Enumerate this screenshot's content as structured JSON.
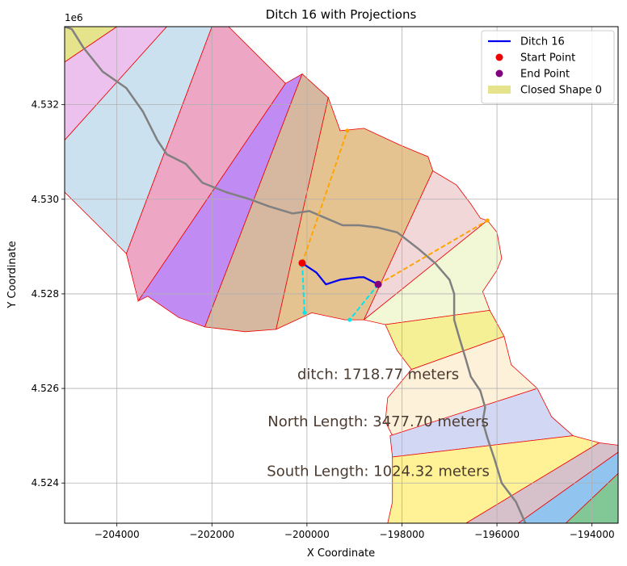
{
  "chart_data": {
    "type": "line",
    "title": "Ditch 16 with Projections",
    "xlabel": "X Coordinate",
    "ylabel": "Y Coordinate",
    "y_offset_label": "1e6",
    "xlim": [
      -205100,
      -193450
    ],
    "ylim": [
      4523150,
      4533650
    ],
    "x_ticks": [
      {
        "value": -204000,
        "label": "−204000"
      },
      {
        "value": -202000,
        "label": "−202000"
      },
      {
        "value": -200000,
        "label": "−200000"
      },
      {
        "value": -198000,
        "label": "−198000"
      },
      {
        "value": -196000,
        "label": "−196000"
      },
      {
        "value": -194000,
        "label": "−194000"
      }
    ],
    "y_ticks": [
      {
        "value": 4524000,
        "label": "4.524"
      },
      {
        "value": 4526000,
        "label": "4.526"
      },
      {
        "value": 4528000,
        "label": "4.528"
      },
      {
        "value": 4530000,
        "label": "4.530"
      },
      {
        "value": 4532000,
        "label": "4.532"
      }
    ],
    "grid": true,
    "legend_position": "top-right",
    "legend": [
      {
        "label": "Ditch 16",
        "kind": "line",
        "color": "#0000ee"
      },
      {
        "label": "Start Point",
        "kind": "dot",
        "color": "#ee0000"
      },
      {
        "label": "End Point",
        "kind": "dot",
        "color": "#800080"
      },
      {
        "label": "Closed Shape 0",
        "kind": "patch",
        "color": "#e5e38c"
      }
    ],
    "annotations": [
      {
        "text": "ditch: 1718.77 meters",
        "x": -198500,
        "y": 4526200
      },
      {
        "text": "North Length: 3477.70 meters",
        "x": -198500,
        "y": 4525200
      },
      {
        "text": "South Length: 1024.32 meters",
        "x": -198500,
        "y": 4524150
      }
    ],
    "polygons": [
      {
        "color": "#e5e38c",
        "points": [
          [
            -205100,
            4533650
          ],
          [
            -204000,
            4533650
          ],
          [
            -205100,
            4532900
          ]
        ]
      },
      {
        "color": "#ecc1ed",
        "points": [
          [
            -205100,
            4532900
          ],
          [
            -204000,
            4533650
          ],
          [
            -202950,
            4533650
          ],
          [
            -205100,
            4531250
          ]
        ]
      },
      {
        "color": "#cce1f0",
        "points": [
          [
            -205100,
            4531250
          ],
          [
            -202950,
            4533650
          ],
          [
            -202000,
            4533650
          ],
          [
            -203800,
            4528850
          ],
          [
            -205100,
            4530150
          ]
        ]
      },
      {
        "color": "#eda6c3",
        "points": [
          [
            -202000,
            4533650
          ],
          [
            -201650,
            4533650
          ],
          [
            -200450,
            4532450
          ],
          [
            -203550,
            4527850
          ],
          [
            -203800,
            4528850
          ]
        ]
      },
      {
        "color": "#c18bf4",
        "points": [
          [
            -200450,
            4532450
          ],
          [
            -200100,
            4532650
          ],
          [
            -202150,
            4527300
          ],
          [
            -202700,
            4527500
          ],
          [
            -203350,
            4527950
          ],
          [
            -203550,
            4527850
          ]
        ]
      },
      {
        "color": "#d6b8a0",
        "points": [
          [
            -200100,
            4532650
          ],
          [
            -199550,
            4532150
          ],
          [
            -200650,
            4527250
          ],
          [
            -201300,
            4527200
          ],
          [
            -202150,
            4527300
          ]
        ]
      },
      {
        "color": "#e5c390",
        "points": [
          [
            -199550,
            4532150
          ],
          [
            -199300,
            4531450
          ],
          [
            -198800,
            4531500
          ],
          [
            -198050,
            4531150
          ],
          [
            -197450,
            4530900
          ],
          [
            -197350,
            4530600
          ],
          [
            -198800,
            4527450
          ],
          [
            -199200,
            4527450
          ],
          [
            -199900,
            4527600
          ],
          [
            -200650,
            4527250
          ]
        ]
      },
      {
        "color": "#f2d7d9",
        "points": [
          [
            -197350,
            4530600
          ],
          [
            -196850,
            4530300
          ],
          [
            -196550,
            4529900
          ],
          [
            -196350,
            4529600
          ],
          [
            -196200,
            4529550
          ],
          [
            -198800,
            4527450
          ],
          [
            -197350,
            4530600
          ]
        ]
      },
      {
        "color": "#f2f8d6",
        "points": [
          [
            -196200,
            4529550
          ],
          [
            -196000,
            4529300
          ],
          [
            -195900,
            4528750
          ],
          [
            -196000,
            4528500
          ],
          [
            -196300,
            4528050
          ],
          [
            -196150,
            4527650
          ],
          [
            -198350,
            4527350
          ],
          [
            -198800,
            4527450
          ]
        ]
      },
      {
        "color": "#f5f096",
        "points": [
          [
            -198350,
            4527350
          ],
          [
            -196150,
            4527650
          ],
          [
            -195850,
            4527100
          ],
          [
            -197800,
            4526400
          ],
          [
            -198100,
            4526800
          ]
        ]
      },
      {
        "color": "#fef1da",
        "points": [
          [
            -195850,
            4527100
          ],
          [
            -195700,
            4526500
          ],
          [
            -195150,
            4526000
          ],
          [
            -198200,
            4525000
          ],
          [
            -198350,
            4525300
          ],
          [
            -198300,
            4525800
          ],
          [
            -197800,
            4526400
          ]
        ]
      },
      {
        "color": "#d2d7f3",
        "points": [
          [
            -195150,
            4526000
          ],
          [
            -194850,
            4525400
          ],
          [
            -194400,
            4525000
          ],
          [
            -198200,
            4524550
          ],
          [
            -198250,
            4525000
          ]
        ]
      },
      {
        "color": "#fef196",
        "points": [
          [
            -198200,
            4524550
          ],
          [
            -194400,
            4525000
          ],
          [
            -193850,
            4524850
          ],
          [
            -196650,
            4523150
          ],
          [
            -198300,
            4523150
          ],
          [
            -198200,
            4523600
          ]
        ]
      },
      {
        "color": "#d6c1ca",
        "points": [
          [
            -193850,
            4524850
          ],
          [
            -193450,
            4524800
          ],
          [
            -193450,
            4524650
          ],
          [
            -195550,
            4523150
          ],
          [
            -196650,
            4523150
          ]
        ]
      },
      {
        "color": "#91c4ee",
        "points": [
          [
            -193450,
            4524650
          ],
          [
            -193450,
            4524200
          ],
          [
            -194550,
            4523150
          ],
          [
            -195550,
            4523150
          ]
        ]
      },
      {
        "color": "#82c897",
        "points": [
          [
            -193450,
            4524200
          ],
          [
            -193450,
            4523150
          ],
          [
            -194550,
            4523150
          ]
        ]
      }
    ],
    "river": [
      [
        -205100,
        4533650
      ],
      [
        -204950,
        4533600
      ],
      [
        -204700,
        4533200
      ],
      [
        -204300,
        4532700
      ],
      [
        -203800,
        4532350
      ],
      [
        -203450,
        4531850
      ],
      [
        -203150,
        4531250
      ],
      [
        -202950,
        4530950
      ],
      [
        -202550,
        4530750
      ],
      [
        -202200,
        4530350
      ],
      [
        -201700,
        4530150
      ],
      [
        -201200,
        4530000
      ],
      [
        -200800,
        4529850
      ],
      [
        -200300,
        4529700
      ],
      [
        -199950,
        4529750
      ],
      [
        -199600,
        4529600
      ],
      [
        -199250,
        4529450
      ],
      [
        -198900,
        4529450
      ],
      [
        -198500,
        4529400
      ],
      [
        -198100,
        4529300
      ],
      [
        -197650,
        4528950
      ],
      [
        -197300,
        4528650
      ],
      [
        -197000,
        4528300
      ],
      [
        -196900,
        4528000
      ],
      [
        -196900,
        4527450
      ],
      [
        -196800,
        4527100
      ],
      [
        -196650,
        4526600
      ],
      [
        -196550,
        4526250
      ],
      [
        -196350,
        4525950
      ],
      [
        -196250,
        4525600
      ],
      [
        -196300,
        4525300
      ],
      [
        -196200,
        4524950
      ],
      [
        -196050,
        4524500
      ],
      [
        -195900,
        4524000
      ],
      [
        -195600,
        4523600
      ],
      [
        -195400,
        4523150
      ]
    ],
    "series": [
      {
        "name": "Ditch 16",
        "color": "#0000ee",
        "points": [
          [
            -200100,
            4528650
          ],
          [
            -199800,
            4528450
          ],
          [
            -199600,
            4528200
          ],
          [
            -199300,
            4528300
          ],
          [
            -198900,
            4528350
          ],
          [
            -198800,
            4528350
          ],
          [
            -198500,
            4528200
          ]
        ]
      }
    ],
    "projections": [
      {
        "color": "#ffa500",
        "points": [
          [
            -200100,
            4528650
          ],
          [
            -199150,
            4531450
          ]
        ]
      },
      {
        "color": "#ffa500",
        "points": [
          [
            -198500,
            4528200
          ],
          [
            -196200,
            4529550
          ]
        ]
      },
      {
        "color": "#00e5ee",
        "points": [
          [
            -200100,
            4528650
          ],
          [
            -200050,
            4527600
          ]
        ]
      },
      {
        "color": "#00e5ee",
        "points": [
          [
            -198500,
            4528200
          ],
          [
            -199100,
            4527450
          ]
        ]
      }
    ],
    "start_point": {
      "label": "Start Point",
      "x": -200100,
      "y": 4528650,
      "color": "#ee0000"
    },
    "end_point": {
      "label": "End Point",
      "x": -198500,
      "y": 4528200,
      "color": "#800080"
    }
  }
}
